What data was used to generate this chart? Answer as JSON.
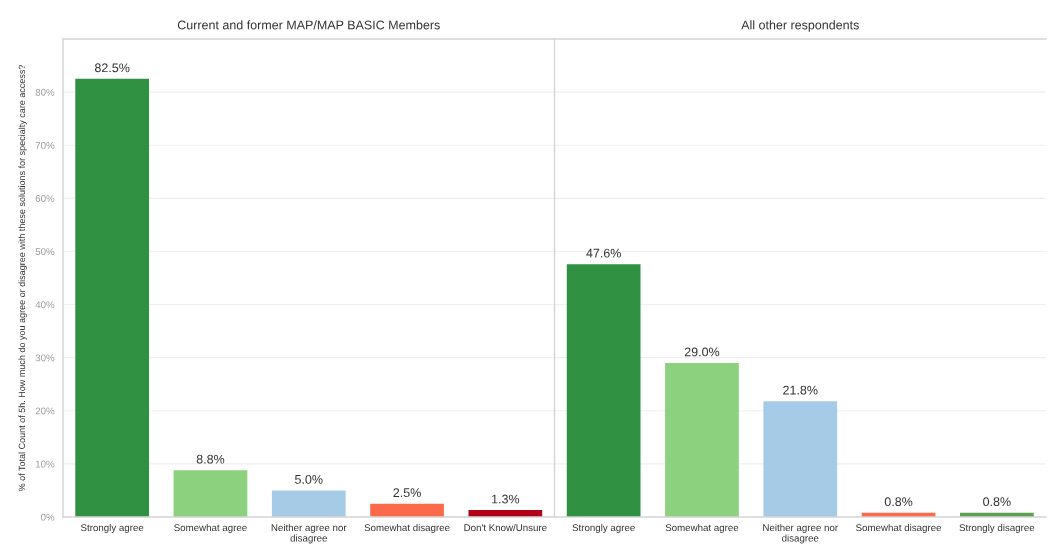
{
  "chart_data": [
    {
      "type": "bar",
      "title": "Current and former MAP/MAP BASIC Members",
      "ylabel": "% of Total Count of 5h. How much do you agree or disagree with these solutions for specialty care access?",
      "categories": [
        "Strongly agree",
        "Somewhat agree",
        "Neither agree nor\ndisagree",
        "Somewhat disagree",
        "Don't Know/Unsure"
      ],
      "values": [
        82.5,
        8.8,
        5.0,
        2.5,
        1.3
      ],
      "colors": [
        "#309143",
        "#8cd17d",
        "#a6cbe7",
        "#fd6a4b",
        "#b10318"
      ],
      "value_labels": [
        "82.5%",
        "8.8%",
        "5.0%",
        "2.5%",
        "1.3%"
      ],
      "ylim": [
        0,
        90
      ],
      "yticks": [
        {
          "value": 0,
          "label": "0%"
        },
        {
          "value": 10,
          "label": "10%"
        },
        {
          "value": 20,
          "label": "20%"
        },
        {
          "value": 30,
          "label": "30%"
        },
        {
          "value": 40,
          "label": "40%"
        },
        {
          "value": 50,
          "label": "50%"
        },
        {
          "value": 60,
          "label": "60%"
        },
        {
          "value": 70,
          "label": "70%"
        },
        {
          "value": 80,
          "label": "80%"
        }
      ],
      "grid": "y"
    },
    {
      "type": "bar",
      "title": "All other respondents",
      "categories": [
        "Strongly agree",
        "Somewhat agree",
        "Neither agree nor\ndisagree",
        "Somewhat disagree",
        "Strongly disagree"
      ],
      "values": [
        47.6,
        29.0,
        21.8,
        0.8,
        0.8
      ],
      "colors": [
        "#309143",
        "#8cd17d",
        "#a6cbe7",
        "#fd6a4b",
        "#5ba150"
      ],
      "value_labels": [
        "47.6%",
        "29.0%",
        "21.8%",
        "0.8%",
        "0.8%"
      ],
      "ylim": [
        0,
        90
      ],
      "yticks": [
        {
          "value": 0,
          "label": null
        },
        {
          "value": 10,
          "label": null
        },
        {
          "value": 20,
          "label": null
        },
        {
          "value": 30,
          "label": null
        },
        {
          "value": 40,
          "label": null
        },
        {
          "value": 50,
          "label": null
        },
        {
          "value": 60,
          "label": null
        },
        {
          "value": 70,
          "label": null
        },
        {
          "value": 80,
          "label": null
        }
      ],
      "grid": "y",
      "tick_labels": "x"
    }
  ]
}
